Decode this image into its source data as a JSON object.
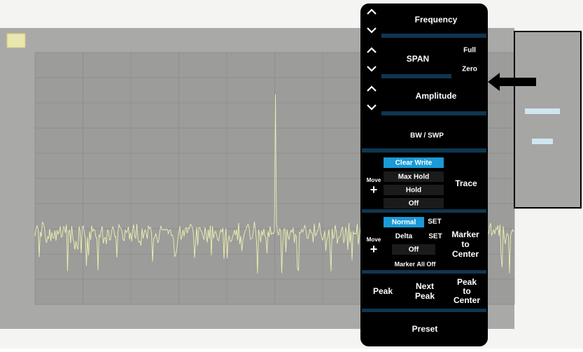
{
  "panel": {
    "frequency": "Frequency",
    "span": {
      "label": "SPAN",
      "full": "Full",
      "zero": "Zero"
    },
    "amplitude": "Amplitude",
    "bw_swp": "BW / SWP",
    "trace": {
      "move": "Move",
      "options": [
        "Clear Write",
        "Max Hold",
        "Hold",
        "Off"
      ],
      "label": "Trace"
    },
    "marker": {
      "move": "Move",
      "normal": "Normal",
      "delta": "Delta",
      "set": [
        "SET",
        "SET"
      ],
      "off": "Off",
      "all_off": "Marker All Off",
      "to_center": [
        "Marker",
        "to",
        "Center"
      ]
    },
    "peak": "Peak",
    "next_peak": [
      "Next",
      "Peak"
    ],
    "peak_to_center": [
      "Peak",
      "to",
      "Center"
    ],
    "preset": "Preset"
  }
}
